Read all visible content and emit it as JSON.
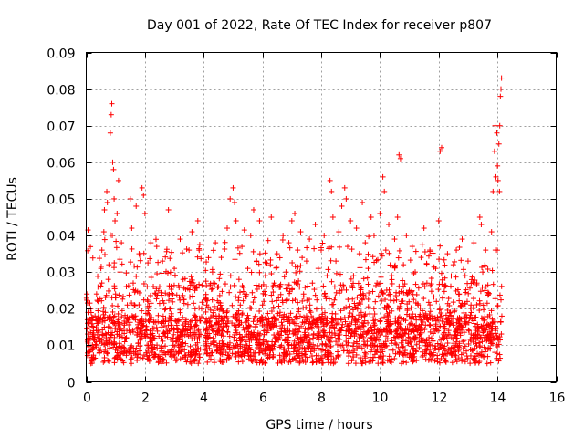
{
  "chart_data": {
    "type": "scatter",
    "title": "Day 001 of 2022, Rate Of TEC Index for receiver p807",
    "xlabel": "GPS time / hours",
    "ylabel": "ROTI / TECUs",
    "xlim": [
      0,
      16
    ],
    "ylim": [
      0,
      0.09
    ],
    "x_ticks": [
      "0",
      "2",
      "4",
      "6",
      "8",
      "10",
      "12",
      "14",
      "16"
    ],
    "y_ticks": [
      "0",
      "0.01",
      "0.02",
      "0.03",
      "0.04",
      "0.05",
      "0.06",
      "0.07",
      "0.08",
      "0.09"
    ],
    "grid": true,
    "marker": "+",
    "color": "#ff0000",
    "series": [
      {
        "name": "ROTI",
        "note": "dense cloud of points from 0 to ~14.1 h; representative sample",
        "points": [
          [
            0.02,
            0.024
          ],
          [
            0.05,
            0.016
          ],
          [
            0.1,
            0.012
          ],
          [
            0.15,
            0.02
          ],
          [
            0.2,
            0.009
          ],
          [
            0.25,
            0.014
          ],
          [
            0.3,
            0.018
          ],
          [
            0.35,
            0.011
          ],
          [
            0.4,
            0.022
          ],
          [
            0.45,
            0.008
          ],
          [
            0.5,
            0.031
          ],
          [
            0.55,
            0.013
          ],
          [
            0.6,
            0.041
          ],
          [
            0.62,
            0.047
          ],
          [
            0.65,
            0.019
          ],
          [
            0.7,
            0.052
          ],
          [
            0.72,
            0.049
          ],
          [
            0.75,
            0.028
          ],
          [
            0.8,
            0.015
          ],
          [
            0.82,
            0.068
          ],
          [
            0.85,
            0.073
          ],
          [
            0.87,
            0.076
          ],
          [
            0.9,
            0.06
          ],
          [
            0.93,
            0.058
          ],
          [
            0.95,
            0.05
          ],
          [
            0.98,
            0.044
          ],
          [
            1.0,
            0.024
          ],
          [
            1.05,
            0.046
          ],
          [
            1.1,
            0.055
          ],
          [
            1.15,
            0.03
          ],
          [
            1.2,
            0.038
          ],
          [
            1.3,
            0.016
          ],
          [
            1.4,
            0.021
          ],
          [
            1.5,
            0.05
          ],
          [
            1.55,
            0.042
          ],
          [
            1.6,
            0.027
          ],
          [
            1.7,
            0.048
          ],
          [
            1.8,
            0.035
          ],
          [
            1.9,
            0.053
          ],
          [
            1.95,
            0.051
          ],
          [
            2.0,
            0.046
          ],
          [
            2.1,
            0.022
          ],
          [
            2.2,
            0.038
          ],
          [
            2.3,
            0.012
          ],
          [
            2.4,
            0.037
          ],
          [
            2.5,
            0.026
          ],
          [
            2.6,
            0.033
          ],
          [
            2.7,
            0.02
          ],
          [
            2.8,
            0.047
          ],
          [
            2.9,
            0.018
          ],
          [
            3.0,
            0.031
          ],
          [
            3.1,
            0.012
          ],
          [
            3.2,
            0.039
          ],
          [
            3.3,
            0.028
          ],
          [
            3.4,
            0.017
          ],
          [
            3.5,
            0.036
          ],
          [
            3.6,
            0.041
          ],
          [
            3.7,
            0.025
          ],
          [
            3.8,
            0.044
          ],
          [
            3.9,
            0.013
          ],
          [
            4.1,
            0.021
          ],
          [
            4.2,
            0.015
          ],
          [
            4.3,
            0.03
          ],
          [
            4.4,
            0.038
          ],
          [
            4.5,
            0.026
          ],
          [
            4.6,
            0.034
          ],
          [
            4.7,
            0.018
          ],
          [
            4.8,
            0.042
          ],
          [
            4.9,
            0.05
          ],
          [
            5.0,
            0.053
          ],
          [
            5.05,
            0.049
          ],
          [
            5.1,
            0.044
          ],
          [
            5.2,
            0.028
          ],
          [
            5.3,
            0.037
          ],
          [
            5.4,
            0.024
          ],
          [
            5.5,
            0.031
          ],
          [
            5.6,
            0.04
          ],
          [
            5.7,
            0.047
          ],
          [
            5.8,
            0.033
          ],
          [
            5.9,
            0.044
          ],
          [
            6.0,
            0.021
          ],
          [
            6.1,
            0.029
          ],
          [
            6.2,
            0.016
          ],
          [
            6.3,
            0.045
          ],
          [
            6.4,
            0.027
          ],
          [
            6.5,
            0.035
          ],
          [
            6.6,
            0.019
          ],
          [
            6.7,
            0.04
          ],
          [
            6.8,
            0.03
          ],
          [
            6.9,
            0.038
          ],
          [
            7.0,
            0.044
          ],
          [
            7.1,
            0.046
          ],
          [
            7.2,
            0.036
          ],
          [
            7.3,
            0.041
          ],
          [
            7.4,
            0.024
          ],
          [
            7.5,
            0.033
          ],
          [
            7.6,
            0.039
          ],
          [
            7.7,
            0.027
          ],
          [
            7.8,
            0.043
          ],
          [
            7.9,
            0.031
          ],
          [
            8.0,
            0.036
          ],
          [
            8.1,
            0.04
          ],
          [
            8.2,
            0.029
          ],
          [
            8.3,
            0.055
          ],
          [
            8.35,
            0.052
          ],
          [
            8.4,
            0.045
          ],
          [
            8.5,
            0.033
          ],
          [
            8.6,
            0.041
          ],
          [
            8.7,
            0.048
          ],
          [
            8.8,
            0.053
          ],
          [
            8.85,
            0.05
          ],
          [
            8.9,
            0.037
          ],
          [
            9.0,
            0.044
          ],
          [
            9.1,
            0.029
          ],
          [
            9.2,
            0.042
          ],
          [
            9.3,
            0.035
          ],
          [
            9.4,
            0.049
          ],
          [
            9.5,
            0.038
          ],
          [
            9.6,
            0.031
          ],
          [
            9.7,
            0.045
          ],
          [
            9.8,
            0.04
          ],
          [
            9.9,
            0.027
          ],
          [
            10.0,
            0.046
          ],
          [
            10.1,
            0.056
          ],
          [
            10.15,
            0.052
          ],
          [
            10.2,
            0.036
          ],
          [
            10.3,
            0.043
          ],
          [
            10.4,
            0.029
          ],
          [
            10.5,
            0.039
          ],
          [
            10.6,
            0.045
          ],
          [
            10.65,
            0.062
          ],
          [
            10.7,
            0.061
          ],
          [
            10.8,
            0.032
          ],
          [
            10.9,
            0.04
          ],
          [
            11.0,
            0.025
          ],
          [
            11.1,
            0.037
          ],
          [
            11.2,
            0.03
          ],
          [
            11.3,
            0.021
          ],
          [
            11.4,
            0.034
          ],
          [
            11.5,
            0.042
          ],
          [
            11.6,
            0.027
          ],
          [
            11.7,
            0.036
          ],
          [
            11.8,
            0.018
          ],
          [
            11.9,
            0.031
          ],
          [
            12.0,
            0.044
          ],
          [
            12.05,
            0.063
          ],
          [
            12.1,
            0.064
          ],
          [
            12.2,
            0.026
          ],
          [
            12.3,
            0.035
          ],
          [
            12.4,
            0.019
          ],
          [
            12.5,
            0.032
          ],
          [
            12.6,
            0.036
          ],
          [
            12.7,
            0.024
          ],
          [
            12.8,
            0.039
          ],
          [
            12.9,
            0.029
          ],
          [
            13.0,
            0.033
          ],
          [
            13.1,
            0.021
          ],
          [
            13.2,
            0.038
          ],
          [
            13.3,
            0.027
          ],
          [
            13.4,
            0.045
          ],
          [
            13.45,
            0.043
          ],
          [
            13.5,
            0.03
          ],
          [
            13.6,
            0.036
          ],
          [
            13.7,
            0.024
          ],
          [
            13.8,
            0.041
          ],
          [
            13.85,
            0.052
          ],
          [
            13.9,
            0.063
          ],
          [
            13.92,
            0.07
          ],
          [
            13.95,
            0.056
          ],
          [
            13.98,
            0.068
          ],
          [
            14.0,
            0.059
          ],
          [
            14.02,
            0.055
          ],
          [
            14.05,
            0.065
          ],
          [
            14.07,
            0.052
          ],
          [
            14.08,
            0.07
          ],
          [
            14.1,
            0.078
          ],
          [
            14.12,
            0.08
          ],
          [
            14.14,
            0.083
          ]
        ]
      }
    ]
  }
}
